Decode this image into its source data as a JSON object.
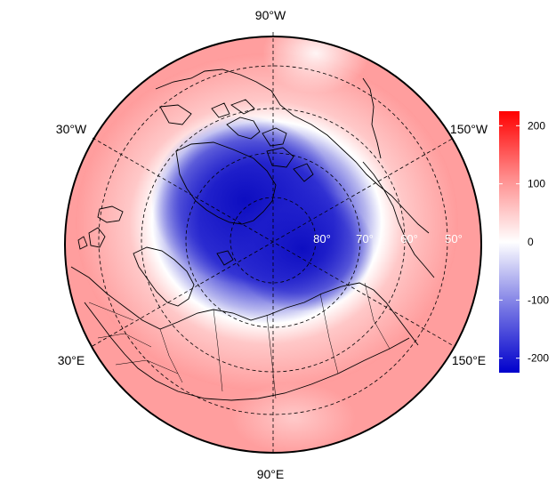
{
  "map": {
    "projection": "north-polar stereographic",
    "longitude_labels": {
      "top": "90°W",
      "upper_left": "30°W",
      "upper_right": "150°W",
      "lower_left": "30°E",
      "lower_right": "150°E",
      "bottom": "90°E"
    },
    "latitude_labels": [
      "80°",
      "70°",
      "60°",
      "50°"
    ],
    "graticule_style": "dashed",
    "field_pattern": "strong negative anomaly centered over the pole and Greenland, positive anomaly ring at mid-latitudes",
    "colors": {
      "negative": "#0000cc",
      "neutral": "#ffffff",
      "positive": "#ff0000",
      "coast": "#000000"
    }
  },
  "colorbar": {
    "ticks": [
      "200",
      "100",
      "0",
      "-100",
      "-200"
    ],
    "tick_values": [
      200,
      100,
      0,
      -100,
      -200
    ],
    "range": [
      -225,
      225
    ]
  }
}
